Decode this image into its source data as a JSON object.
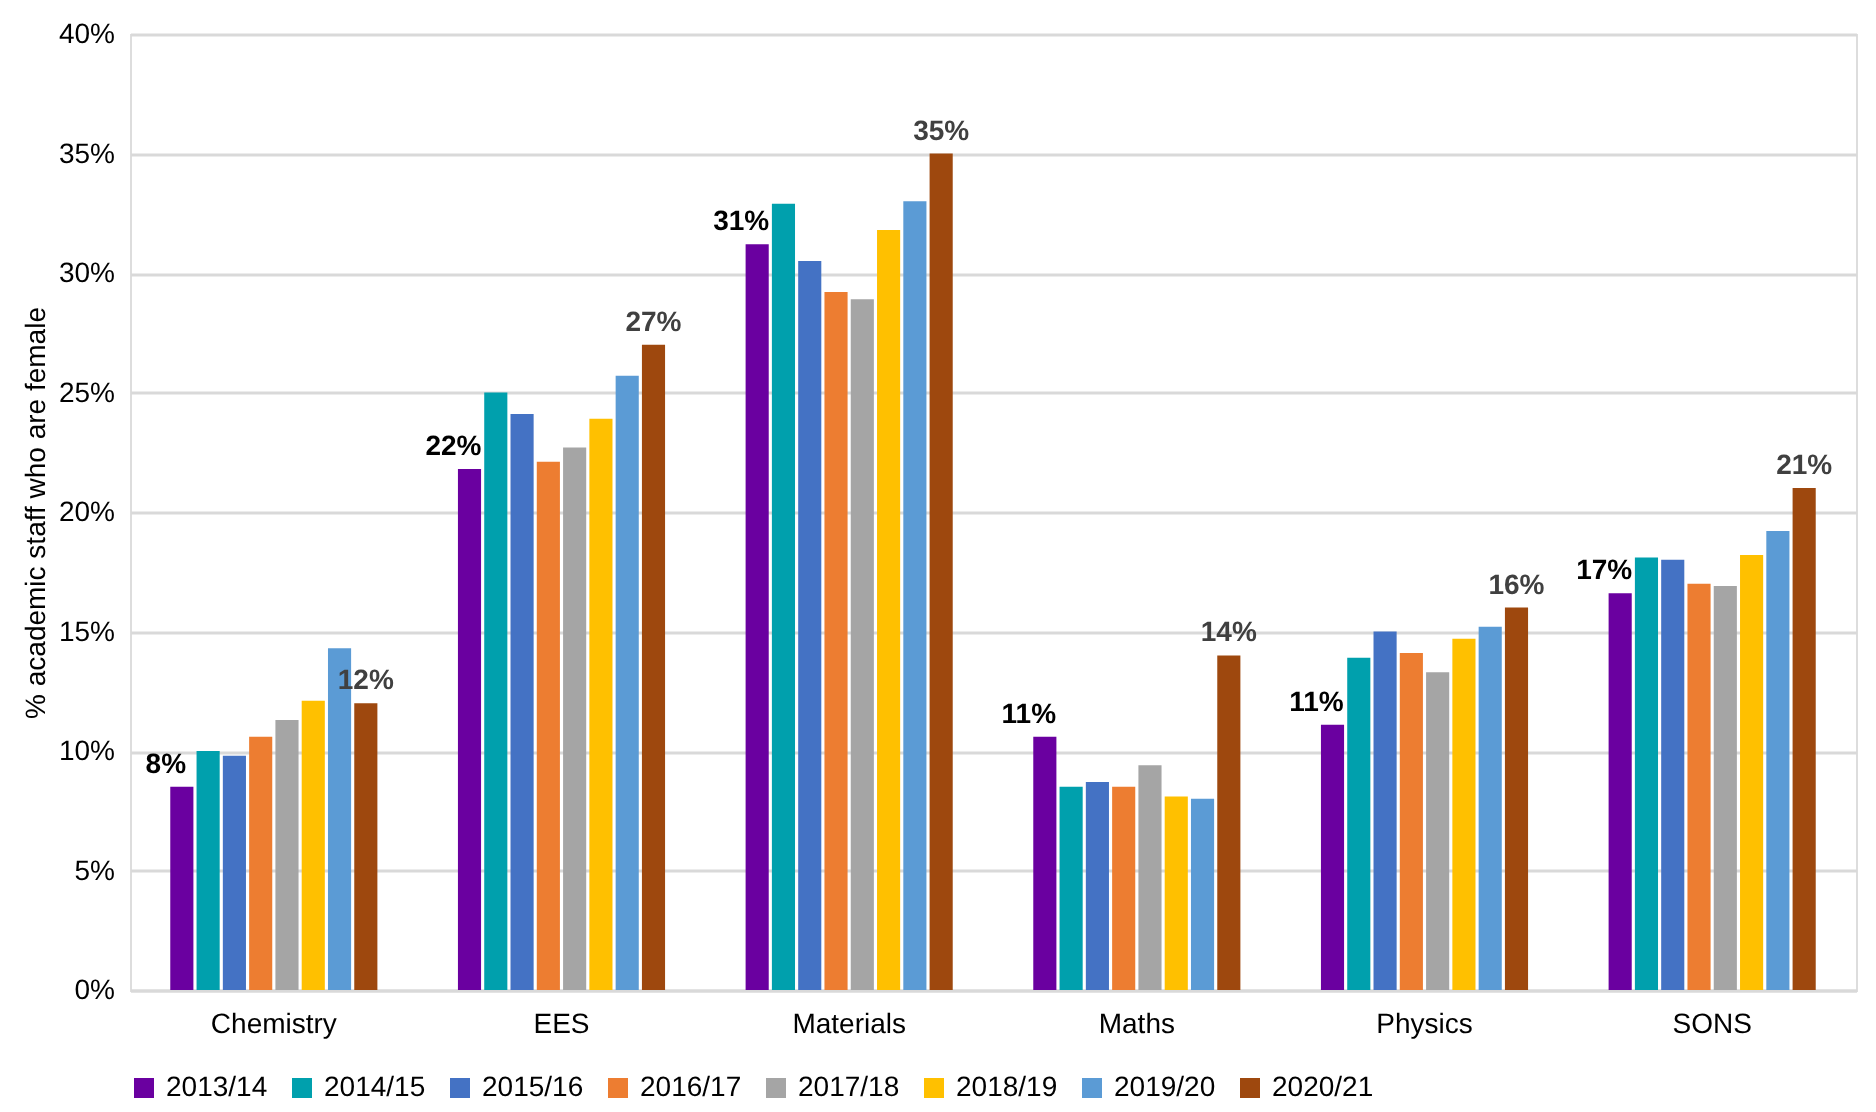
{
  "chart_data": {
    "type": "bar",
    "ylabel": "% academic staff who are female",
    "categories": [
      "Chemistry",
      "EES",
      "Materials",
      "Maths",
      "Physics",
      "SONS"
    ],
    "series": [
      {
        "name": "2013/14",
        "color": "#6a00a0",
        "values": [
          8.5,
          21.8,
          31.2,
          10.6,
          11.1,
          16.6
        ],
        "value_labels": [
          "8%",
          "22%",
          "31%",
          "11%",
          "11%",
          "17%"
        ]
      },
      {
        "name": "2014/15",
        "color": "#00a0ad",
        "values": [
          10.0,
          25.0,
          32.9,
          8.5,
          13.9,
          18.1
        ]
      },
      {
        "name": "2015/16",
        "color": "#4472c4",
        "values": [
          9.8,
          24.1,
          30.5,
          8.7,
          15.0,
          18.0
        ]
      },
      {
        "name": "2016/17",
        "color": "#ed7d31",
        "values": [
          10.6,
          22.1,
          29.2,
          8.5,
          14.1,
          17.0
        ]
      },
      {
        "name": "2017/18",
        "color": "#a5a5a5",
        "values": [
          11.3,
          22.7,
          28.9,
          9.4,
          13.3,
          16.9
        ]
      },
      {
        "name": "2018/19",
        "color": "#ffc000",
        "values": [
          12.1,
          23.9,
          31.8,
          8.1,
          14.7,
          18.2
        ]
      },
      {
        "name": "2019/20",
        "color": "#5b9bd5",
        "values": [
          14.3,
          25.7,
          33.0,
          8.0,
          15.2,
          19.2
        ]
      },
      {
        "name": "2020/21",
        "color": "#9e480e",
        "values": [
          12.0,
          27.0,
          35.0,
          14.0,
          16.0,
          21.0
        ],
        "value_labels": [
          "12%",
          "27%",
          "35%",
          "14%",
          "16%",
          "21%"
        ]
      }
    ],
    "ylim": [
      0,
      40
    ],
    "yticks": [
      {
        "value": 0,
        "label": "0%"
      },
      {
        "value": 5,
        "label": "5%"
      },
      {
        "value": 10,
        "label": "10%"
      },
      {
        "value": 15,
        "label": "15%"
      },
      {
        "value": 20,
        "label": "20%"
      },
      {
        "value": 25,
        "label": "25%"
      },
      {
        "value": 30,
        "label": "30%"
      },
      {
        "value": 35,
        "label": "35%"
      },
      {
        "value": 40,
        "label": "40%"
      }
    ],
    "grid": "y",
    "legend": "bottom"
  }
}
